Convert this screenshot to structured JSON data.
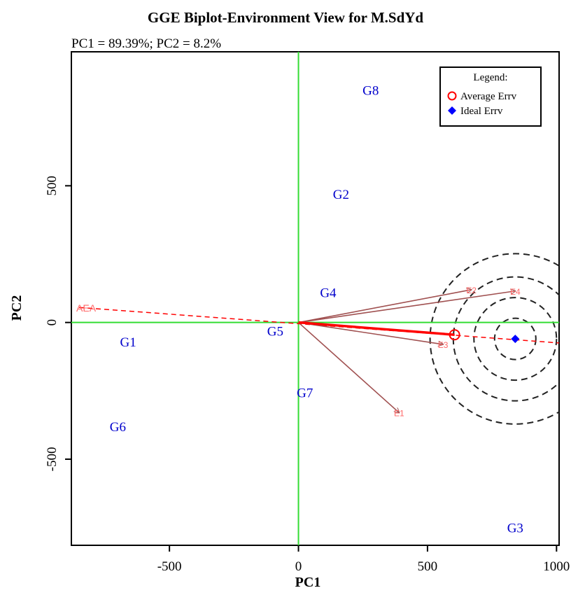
{
  "chart_data": {
    "type": "scatter",
    "title": "GGE Biplot-Environment View for M.SdYd",
    "subtitle": "PC1 = 89.39%; PC2 = 8.2%",
    "xlabel": "PC1",
    "ylabel": "PC2",
    "xlim": [
      -880,
      1010
    ],
    "ylim": [
      -815,
      990
    ],
    "xticks": [
      -500,
      0,
      500,
      1000
    ],
    "yticks": [
      -500,
      0,
      500
    ],
    "xtick_labels": [
      "-500",
      "0",
      "500",
      "1000"
    ],
    "ytick_labels": [
      "-500",
      "0",
      "500"
    ],
    "grid": false,
    "legend_position": "top-right",
    "legend": {
      "title": "Legend:",
      "items": [
        {
          "label": "Average Errv",
          "marker": "open-circle",
          "color": "#ff0000"
        },
        {
          "label": "Ideal Errv",
          "marker": "filled-diamond",
          "color": "#0000ff"
        }
      ]
    },
    "genotypes": [
      {
        "label": "G1",
        "x": -660,
        "y": -70
      },
      {
        "label": "G2",
        "x": 165,
        "y": 470
      },
      {
        "label": "G3",
        "x": 840,
        "y": -750
      },
      {
        "label": "G4",
        "x": 115,
        "y": 110
      },
      {
        "label": "G5",
        "x": -90,
        "y": -30
      },
      {
        "label": "G6",
        "x": -700,
        "y": -380
      },
      {
        "label": "G7",
        "x": 25,
        "y": -255
      },
      {
        "label": "G8",
        "x": 280,
        "y": 850
      }
    ],
    "environments": [
      {
        "label": "E1",
        "x": 390,
        "y": -330
      },
      {
        "label": "E2",
        "x": 670,
        "y": 120
      },
      {
        "label": "E3",
        "x": 560,
        "y": -80
      },
      {
        "label": "E4",
        "x": 840,
        "y": 115
      }
    ],
    "aea": {
      "label": "AEA",
      "start": {
        "x": -850,
        "y": 55
      },
      "end": {
        "x": 1010,
        "y": -75
      }
    },
    "average_environment": {
      "x": 605,
      "y": -45
    },
    "ideal_environment": {
      "x": 840,
      "y": -60
    },
    "concentric_circle_radii": [
      80,
      160,
      240,
      330
    ],
    "colors": {
      "axes_lines": "#33dd33",
      "genotype_text": "#0000cc",
      "environment_vector": "#a05050",
      "environment_text": "#ff6666",
      "aea_line": "#ff0000",
      "ideal_marker": "#0000ff",
      "circles": "#222222"
    }
  }
}
